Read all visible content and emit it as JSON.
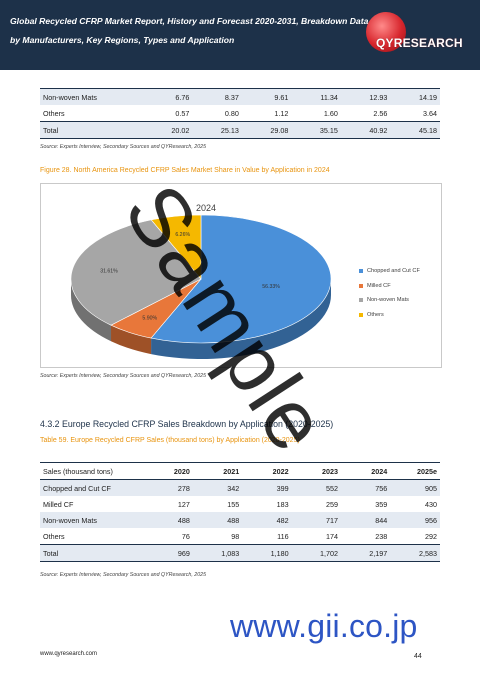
{
  "header": {
    "title": "Global Recycled CFRP Market Report, History and Forecast 2020-2031, Breakdown Data by Manufacturers, Key Regions, Types and Application",
    "logo_text": "QYRESEARCH"
  },
  "top_table": {
    "rows": [
      {
        "label": "Non-woven Mats",
        "values": [
          "6.76",
          "8.37",
          "9.61",
          "11.34",
          "12.93",
          "14.19"
        ]
      },
      {
        "label": "Others",
        "values": [
          "0.57",
          "0.80",
          "1.12",
          "1.60",
          "2.56",
          "3.64"
        ]
      },
      {
        "label": "Total",
        "values": [
          "20.02",
          "25.13",
          "29.08",
          "35.15",
          "40.92",
          "45.18"
        ]
      }
    ],
    "source": "Source: Experts Interview, Secondary Sources and QYResearch, 2025"
  },
  "figure": {
    "caption": "Figure 28.   North America Recycled CFRP Sales Market Share in Value by Application in 2024",
    "source": "Source: Experts Interview, Secondary Sources and QYResearch, 2025"
  },
  "chart_data": {
    "type": "pie",
    "title": "2024",
    "categories": [
      "Chopped and Cut CF",
      "Milled CF",
      "Non-woven Mats",
      "Others"
    ],
    "values": [
      56.33,
      5.9,
      31.61,
      6.26
    ],
    "labels": [
      "56.33%",
      "5.90%",
      "31.61%",
      "6.26%"
    ],
    "colors": [
      "#4a90d9",
      "#e8773a",
      "#a6a6a6",
      "#f5b800"
    ],
    "legend": "right"
  },
  "section": {
    "heading": "4.3.2   Europe Recycled CFRP Sales Breakdown by Application (2020-2025)",
    "table_caption": "Table 59.   Europe Recycled CFRP Sales (thousand tons) by Application (2020-2025)"
  },
  "sales_table": {
    "columns": [
      "Sales (thousand tons)",
      "2020",
      "2021",
      "2022",
      "2023",
      "2024",
      "2025e"
    ],
    "rows": [
      {
        "label": "Chopped and Cut CF",
        "values": [
          "278",
          "342",
          "399",
          "552",
          "756",
          "905"
        ]
      },
      {
        "label": "Milled CF",
        "values": [
          "127",
          "155",
          "183",
          "259",
          "359",
          "430"
        ]
      },
      {
        "label": "Non-woven Mats",
        "values": [
          "488",
          "488",
          "482",
          "717",
          "844",
          "956"
        ]
      },
      {
        "label": "Others",
        "values": [
          "76",
          "98",
          "116",
          "174",
          "238",
          "292"
        ]
      },
      {
        "label": "Total",
        "values": [
          "969",
          "1,083",
          "1,180",
          "1,702",
          "2,197",
          "2,583"
        ]
      }
    ],
    "source": "Source: Experts Interview, Secondary Sources and QYResearch, 2025"
  },
  "footer": {
    "url": "www.qyresearch.com",
    "page_number": "44"
  },
  "watermarks": {
    "sample": "Sample",
    "gii": "www.gii.co.jp"
  }
}
